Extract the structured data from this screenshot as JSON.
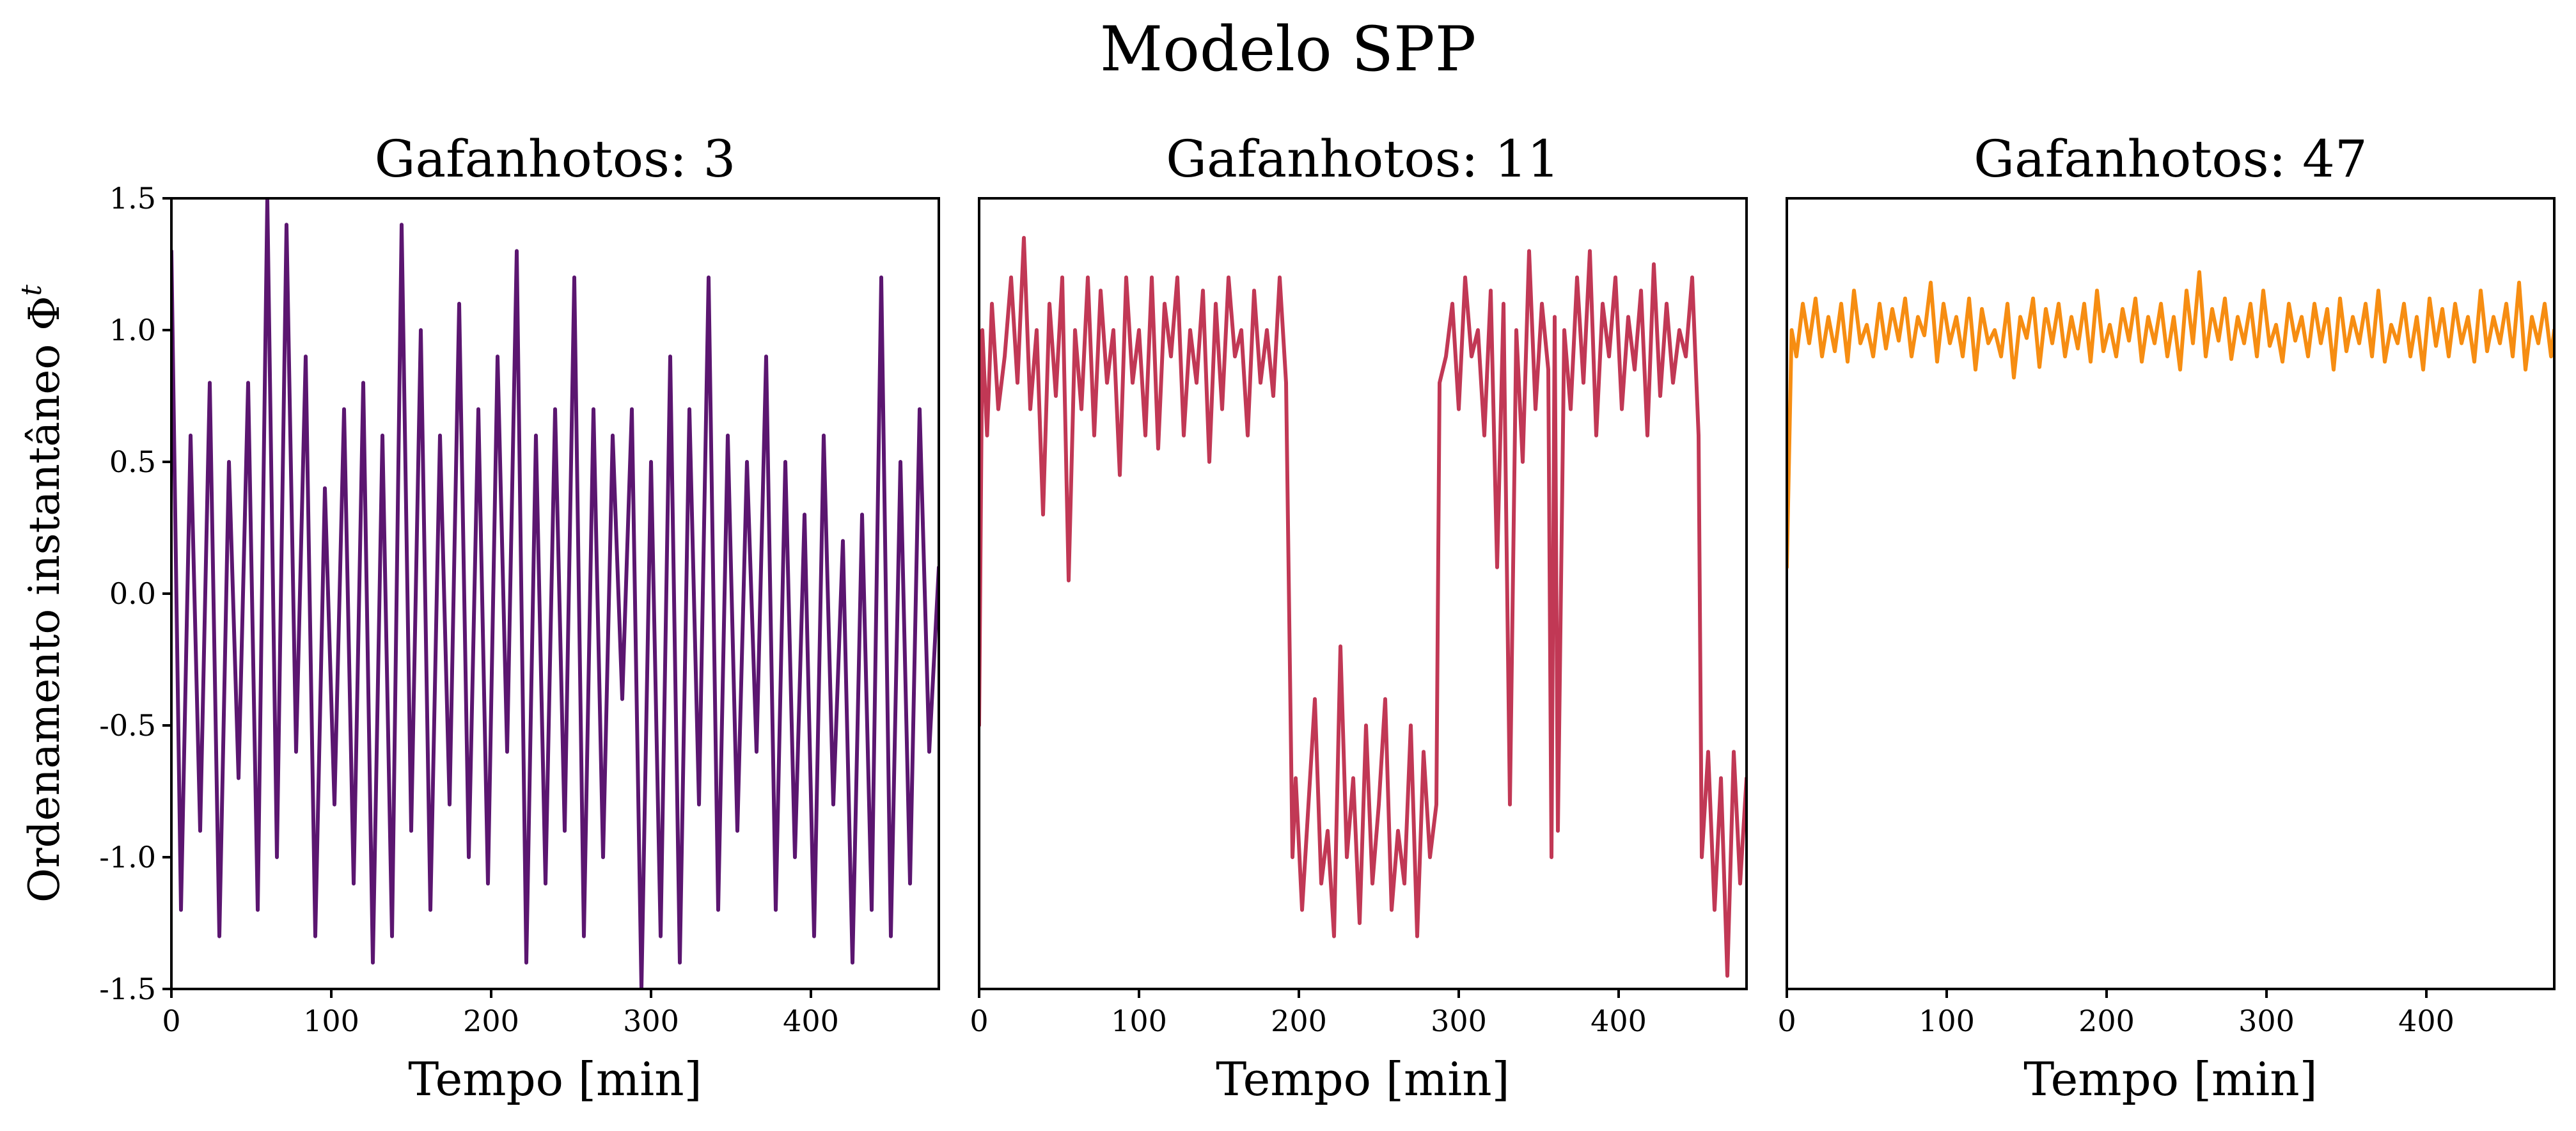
{
  "figure": {
    "title": "Modelo SPP"
  },
  "chart_data": [
    {
      "type": "line",
      "title": "Gafanhotos: 3",
      "xlabel": "Tempo [min]",
      "ylabel": "Ordenamento instantâneo Φ",
      "ylabel_superscript": "t",
      "xlim": [
        0,
        480
      ],
      "ylim": [
        -1.5,
        1.5
      ],
      "xticks": [
        "0",
        "100",
        "200",
        "300",
        "400"
      ],
      "yticks": [
        "-1.5",
        "-1.0",
        "-0.5",
        "0.0",
        "0.5",
        "1.0",
        "1.5"
      ],
      "color": "#5b1670",
      "series": [
        {
          "x": [
            0,
            6,
            12,
            18,
            24,
            30,
            36,
            42,
            48,
            54,
            60,
            66,
            72,
            78,
            84,
            90,
            96,
            102,
            108,
            114,
            120,
            126,
            132,
            138,
            144,
            150,
            156,
            162,
            168,
            174,
            180,
            186,
            192,
            198,
            204,
            210,
            216,
            222,
            228,
            234,
            240,
            246,
            252,
            258,
            264,
            270,
            276,
            282,
            288,
            294,
            300,
            306,
            312,
            318,
            324,
            330,
            336,
            342,
            348,
            354,
            360,
            366,
            372,
            378,
            384,
            390,
            396,
            402,
            408,
            414,
            420,
            426,
            432,
            438,
            444,
            450,
            456,
            462,
            468,
            474,
            480
          ],
          "y": [
            1.3,
            -1.2,
            0.6,
            -0.9,
            0.8,
            -1.3,
            0.5,
            -0.7,
            0.8,
            -1.2,
            1.5,
            -1.0,
            1.4,
            -0.6,
            0.9,
            -1.3,
            0.4,
            -0.8,
            0.7,
            -1.1,
            0.8,
            -1.4,
            0.6,
            -1.3,
            1.4,
            -0.9,
            1.0,
            -1.2,
            0.6,
            -0.8,
            1.1,
            -1.0,
            0.7,
            -1.1,
            0.9,
            -0.6,
            1.3,
            -1.4,
            0.6,
            -1.1,
            0.7,
            -0.9,
            1.2,
            -1.3,
            0.7,
            -1.0,
            0.6,
            -0.4,
            0.7,
            -1.5,
            0.5,
            -1.3,
            0.9,
            -1.4,
            0.7,
            -0.8,
            1.2,
            -1.2,
            0.6,
            -0.9,
            0.5,
            -0.6,
            0.9,
            -1.2,
            0.5,
            -1.0,
            0.3,
            -1.3,
            0.6,
            -0.8,
            0.2,
            -1.4,
            0.3,
            -1.2,
            1.2,
            -1.3,
            0.5,
            -1.1,
            0.7,
            -0.6,
            0.1
          ]
        }
      ]
    },
    {
      "type": "line",
      "title": "Gafanhotos: 11",
      "xlabel": "Tempo [min]",
      "xlim": [
        0,
        480
      ],
      "ylim": [
        -1.5,
        1.5
      ],
      "xticks": [
        "0",
        "100",
        "200",
        "300",
        "400"
      ],
      "color": "#c13855",
      "series": [
        {
          "x": [
            0,
            2,
            5,
            8,
            12,
            16,
            20,
            24,
            28,
            32,
            36,
            40,
            44,
            48,
            52,
            56,
            60,
            64,
            68,
            72,
            76,
            80,
            84,
            88,
            92,
            96,
            100,
            104,
            108,
            112,
            116,
            120,
            124,
            128,
            132,
            136,
            140,
            144,
            148,
            152,
            156,
            160,
            164,
            168,
            172,
            176,
            180,
            184,
            188,
            192,
            196,
            198,
            202,
            206,
            210,
            214,
            218,
            222,
            226,
            230,
            234,
            238,
            242,
            246,
            250,
            254,
            258,
            262,
            266,
            270,
            274,
            278,
            282,
            286,
            288,
            292,
            296,
            300,
            304,
            308,
            312,
            316,
            320,
            324,
            328,
            332,
            336,
            340,
            344,
            348,
            352,
            356,
            358,
            360,
            362,
            366,
            370,
            374,
            378,
            382,
            386,
            390,
            394,
            398,
            402,
            406,
            410,
            414,
            418,
            422,
            426,
            430,
            434,
            438,
            442,
            446,
            450,
            452,
            456,
            460,
            464,
            468,
            472,
            476,
            480
          ],
          "y": [
            -0.5,
            1.0,
            0.6,
            1.1,
            0.7,
            0.9,
            1.2,
            0.8,
            1.35,
            0.7,
            1.0,
            0.3,
            1.1,
            0.75,
            1.2,
            0.05,
            1.0,
            0.7,
            1.2,
            0.6,
            1.15,
            0.8,
            1.0,
            0.45,
            1.2,
            0.8,
            1.0,
            0.6,
            1.2,
            0.55,
            1.1,
            0.9,
            1.2,
            0.6,
            1.0,
            0.8,
            1.15,
            0.5,
            1.1,
            0.7,
            1.2,
            0.9,
            1.0,
            0.6,
            1.15,
            0.8,
            1.0,
            0.75,
            1.2,
            0.8,
            -1.0,
            -0.7,
            -1.2,
            -0.8,
            -0.4,
            -1.1,
            -0.9,
            -1.3,
            -0.2,
            -1.0,
            -0.7,
            -1.25,
            -0.5,
            -1.1,
            -0.8,
            -0.4,
            -1.2,
            -0.9,
            -1.1,
            -0.5,
            -1.3,
            -0.6,
            -1.0,
            -0.8,
            0.8,
            0.9,
            1.1,
            0.7,
            1.2,
            0.9,
            1.0,
            0.6,
            1.15,
            0.1,
            1.1,
            -0.8,
            1.0,
            0.5,
            1.3,
            0.7,
            1.1,
            0.85,
            -1.0,
            1.05,
            -0.9,
            1.0,
            0.7,
            1.2,
            0.8,
            1.3,
            0.6,
            1.1,
            0.9,
            1.2,
            0.7,
            1.05,
            0.85,
            1.15,
            0.6,
            1.25,
            0.75,
            1.1,
            0.8,
            1.0,
            0.9,
            1.2,
            0.6,
            -1.0,
            -0.6,
            -1.2,
            -0.7,
            -1.45,
            -0.6,
            -1.1,
            -0.7
          ]
        }
      ]
    },
    {
      "type": "line",
      "title": "Gafanhotos: 47",
      "xlabel": "Tempo [min]",
      "xlim": [
        0,
        480
      ],
      "ylim": [
        -1.5,
        1.5
      ],
      "xticks": [
        "0",
        "100",
        "200",
        "300",
        "400"
      ],
      "color": "#f68d12",
      "series": [
        {
          "x": [
            0,
            3,
            6,
            10,
            14,
            18,
            22,
            26,
            30,
            34,
            38,
            42,
            46,
            50,
            54,
            58,
            62,
            66,
            70,
            74,
            78,
            82,
            86,
            90,
            94,
            98,
            102,
            106,
            110,
            114,
            118,
            122,
            126,
            130,
            134,
            138,
            142,
            146,
            150,
            154,
            158,
            162,
            166,
            170,
            174,
            178,
            182,
            186,
            190,
            194,
            198,
            202,
            206,
            210,
            214,
            218,
            222,
            226,
            230,
            234,
            238,
            242,
            246,
            250,
            254,
            258,
            262,
            266,
            270,
            274,
            278,
            282,
            286,
            290,
            294,
            298,
            302,
            306,
            310,
            314,
            318,
            322,
            326,
            330,
            334,
            338,
            342,
            346,
            350,
            354,
            358,
            362,
            366,
            370,
            374,
            378,
            382,
            386,
            390,
            394,
            398,
            402,
            406,
            410,
            414,
            418,
            422,
            426,
            430,
            434,
            438,
            442,
            446,
            450,
            454,
            458,
            462,
            466,
            470,
            474,
            478,
            480
          ],
          "y": [
            0.1,
            1.0,
            0.9,
            1.1,
            0.95,
            1.12,
            0.9,
            1.05,
            0.92,
            1.1,
            0.88,
            1.15,
            0.95,
            1.02,
            0.9,
            1.1,
            0.93,
            1.08,
            0.96,
            1.12,
            0.9,
            1.05,
            0.98,
            1.18,
            0.88,
            1.1,
            0.95,
            1.05,
            0.9,
            1.12,
            0.85,
            1.08,
            0.95,
            1.0,
            0.9,
            1.1,
            0.82,
            1.05,
            0.97,
            1.12,
            0.86,
            1.08,
            0.95,
            1.1,
            0.9,
            1.05,
            0.93,
            1.1,
            0.88,
            1.15,
            0.92,
            1.02,
            0.9,
            1.08,
            0.96,
            1.12,
            0.88,
            1.05,
            0.95,
            1.1,
            0.9,
            1.05,
            0.85,
            1.15,
            0.95,
            1.22,
            0.9,
            1.08,
            0.96,
            1.12,
            0.89,
            1.05,
            0.95,
            1.1,
            0.9,
            1.15,
            0.94,
            1.02,
            0.88,
            1.1,
            0.96,
            1.05,
            0.9,
            1.1,
            0.95,
            1.08,
            0.85,
            1.12,
            0.92,
            1.05,
            0.95,
            1.1,
            0.9,
            1.15,
            0.88,
            1.02,
            0.95,
            1.1,
            0.9,
            1.05,
            0.85,
            1.12,
            0.94,
            1.08,
            0.9,
            1.1,
            0.95,
            1.05,
            0.88,
            1.15,
            0.92,
            1.05,
            0.95,
            1.1,
            0.9,
            1.18,
            0.85,
            1.05,
            0.95,
            1.1,
            0.9,
            1.0
          ]
        }
      ]
    }
  ]
}
